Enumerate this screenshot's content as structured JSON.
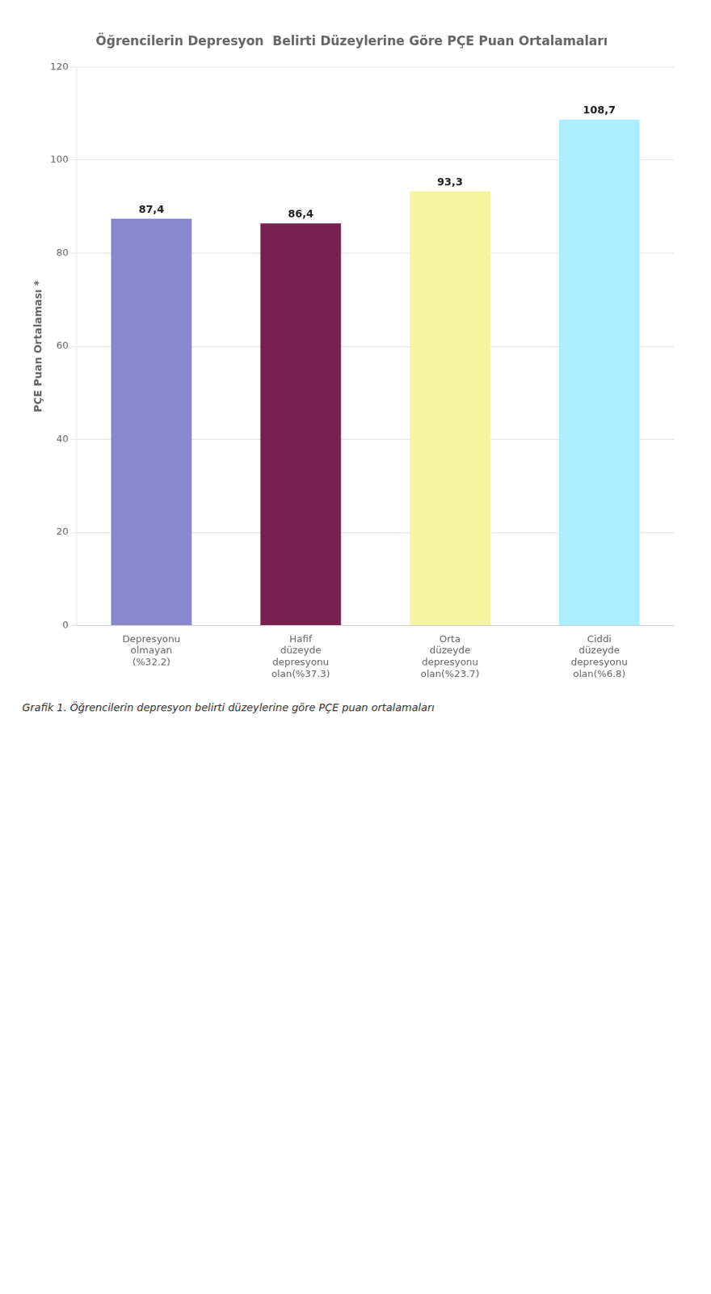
{
  "chart_data": {
    "type": "bar",
    "title": "Öğrencilerin Depresyon  Belirti Düzeylerine Göre PÇE Puan Ortalamaları",
    "caption": "Grafik 1. Öğrencilerin depresyon belirti düzeylerine göre PÇE puan ortalamaları",
    "y_label": "PÇE Puan Ortalaması *",
    "categories": [
      "Depresyonu olmayan (%32.2)",
      "Hafif düzeyde depresyonu olan(%37.3)",
      "Orta düzeyde depresyonu olan(%23.7)",
      "Ciddi düzeyde depresyonu olan(%6.8)"
    ],
    "values": [
      87.4,
      86.4,
      93.3,
      108.7
    ],
    "value_labels": [
      "87,4",
      "86,4",
      "93,3",
      "108,7"
    ],
    "colors": [
      "#8888cc",
      "#7a2050",
      "#f5f5a0",
      "#aaeeff"
    ],
    "ylim": [
      0,
      120
    ],
    "yticks": [
      0,
      20,
      40,
      60,
      80,
      100,
      120
    ],
    "grid": true,
    "data_labels": true
  }
}
